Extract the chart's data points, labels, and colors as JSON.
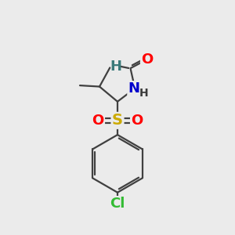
{
  "background_color": "#ebebeb",
  "bond_color": "#404040",
  "atom_colors": {
    "O": "#ff0000",
    "N": "#0000cc",
    "S": "#ccaa00",
    "Cl": "#33bb33",
    "C": "#404040",
    "H_formyl": "#3a7a7a",
    "H_n": "#3a3a3a"
  },
  "figsize": [
    3.0,
    3.0
  ],
  "dpi": 100
}
